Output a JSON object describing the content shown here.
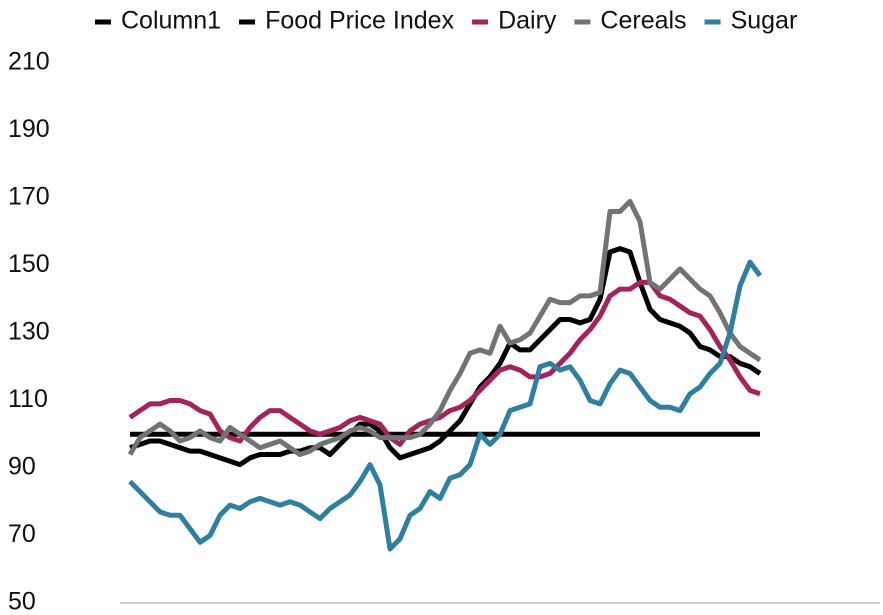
{
  "chart_data": {
    "type": "line",
    "ylim": [
      50,
      210
    ],
    "yticks": [
      50,
      70,
      90,
      110,
      130,
      150,
      170,
      190,
      210
    ],
    "grid": false,
    "legend": "top",
    "series": [
      {
        "name": "Column1",
        "color": "#000000",
        "values": [
          100,
          100,
          100,
          100,
          100,
          100,
          100,
          100,
          100,
          100,
          100,
          100,
          100,
          100,
          100,
          100,
          100,
          100,
          100,
          100,
          100,
          100,
          100,
          100,
          100,
          100,
          100,
          100,
          100,
          100,
          100,
          100,
          100,
          100,
          100,
          100,
          100,
          100,
          100,
          100,
          100,
          100,
          100,
          100,
          100,
          100,
          100,
          100,
          100,
          100,
          100,
          100,
          100,
          100,
          100,
          100,
          100,
          100,
          100,
          100,
          100,
          100,
          100,
          100
        ]
      },
      {
        "name": "Food Price Index",
        "color": "#000000",
        "values": [
          96,
          97,
          98,
          98,
          97,
          96,
          95,
          95,
          94,
          93,
          92,
          91,
          93,
          94,
          94,
          94,
          95,
          95,
          96,
          96,
          94,
          97,
          100,
          103,
          103,
          101,
          96,
          93,
          94,
          95,
          96,
          98,
          101,
          104,
          109,
          114,
          117,
          121,
          127,
          125,
          125,
          128,
          131,
          134,
          134,
          133,
          134,
          140,
          154,
          155,
          154,
          145,
          137,
          134,
          133,
          132,
          130,
          126,
          125,
          123,
          123,
          121,
          120,
          118
        ]
      },
      {
        "name": "Dairy",
        "color": "#a3245d",
        "values": [
          105,
          107,
          109,
          109,
          110,
          110,
          109,
          107,
          106,
          101,
          99,
          98,
          102,
          105,
          107,
          107,
          105,
          103,
          101,
          100,
          101,
          102,
          104,
          105,
          104,
          103,
          99,
          97,
          101,
          103,
          104,
          105,
          107,
          108,
          110,
          113,
          116,
          119,
          120,
          119,
          117,
          117,
          118,
          121,
          124,
          128,
          131,
          135,
          141,
          143,
          143,
          145,
          145,
          141,
          140,
          138,
          136,
          135,
          131,
          126,
          122,
          117,
          113,
          112
        ]
      },
      {
        "name": "Cereals",
        "color": "#737373",
        "values": [
          94,
          99,
          101,
          103,
          101,
          98,
          99,
          101,
          99,
          98,
          102,
          100,
          98,
          96,
          97,
          98,
          96,
          94,
          95,
          97,
          98,
          99,
          101,
          102,
          101,
          99,
          99,
          99,
          99,
          100,
          103,
          107,
          113,
          118,
          124,
          125,
          124,
          132,
          127,
          128,
          130,
          135,
          140,
          139,
          139,
          141,
          141,
          142,
          166,
          166,
          169,
          163,
          145,
          143,
          146,
          149,
          146,
          143,
          141,
          136,
          130,
          126,
          124,
          122
        ]
      },
      {
        "name": "Sugar",
        "color": "#2e7fa0",
        "values": [
          86,
          83,
          80,
          77,
          76,
          76,
          72,
          68,
          70,
          76,
          79,
          78,
          80,
          81,
          80,
          79,
          80,
          79,
          77,
          75,
          78,
          80,
          82,
          86,
          91,
          85,
          66,
          69,
          76,
          78,
          83,
          81,
          87,
          88,
          91,
          100,
          97,
          100,
          107,
          108,
          109,
          120,
          121,
          119,
          120,
          116,
          110,
          109,
          115,
          119,
          118,
          114,
          110,
          108,
          108,
          107,
          112,
          114,
          118,
          121,
          130,
          144,
          151,
          147
        ]
      }
    ]
  }
}
